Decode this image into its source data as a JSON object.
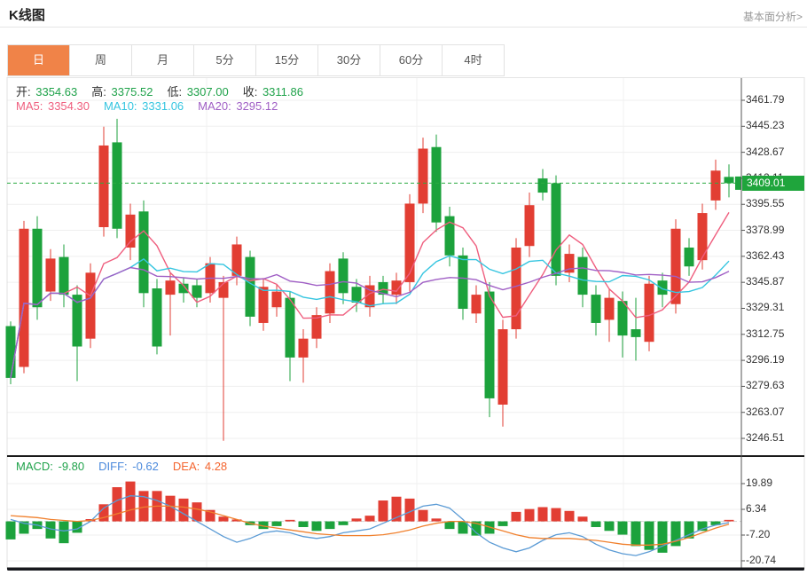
{
  "header": {
    "title": "K线图",
    "link": "基本面分析>"
  },
  "tabs": [
    {
      "label": "日",
      "selected": true
    },
    {
      "label": "周",
      "selected": false
    },
    {
      "label": "月",
      "selected": false
    },
    {
      "label": "5分",
      "selected": false
    },
    {
      "label": "15分",
      "selected": false
    },
    {
      "label": "30分",
      "selected": false
    },
    {
      "label": "60分",
      "selected": false
    },
    {
      "label": "4时",
      "selected": false
    }
  ],
  "legend": {
    "ohlc": [
      {
        "label": "开:",
        "value": "3354.63"
      },
      {
        "label": "高:",
        "value": "3375.52"
      },
      {
        "label": "低:",
        "value": "3307.00"
      },
      {
        "label": "收:",
        "value": "3311.86"
      }
    ],
    "ma": [
      {
        "label": "MA5:",
        "value": "3354.30",
        "color": "#ef5e7e"
      },
      {
        "label": "MA10:",
        "value": "3331.06",
        "color": "#35c5e0"
      },
      {
        "label": "MA20:",
        "value": "3295.12",
        "color": "#a05fc5"
      }
    ]
  },
  "macd_legend": [
    {
      "label": "MACD:",
      "value": "-9.80",
      "color": "#1fa24a"
    },
    {
      "label": "DIFF:",
      "value": "-0.62",
      "color": "#4a89dc"
    },
    {
      "label": "DEA:",
      "value": "4.28",
      "color": "#f4652f"
    }
  ],
  "current_price": {
    "value": "3409.01",
    "price": 3409.01
  },
  "colors": {
    "up": "#e23e33",
    "down": "#1ca23c",
    "ohlc_value": "#1fa24a",
    "badge_bg": "#1fa53c",
    "dashed_line": "#2bab40",
    "diff_line": "#5b9bd5",
    "dea_line": "#f0802d",
    "grid": "#efefef",
    "axis": "#555555",
    "tab_accent": "#f08348"
  },
  "chart_data": [
    {
      "type": "candlestick",
      "title": "K线图 daily candles (open, close, high, low)",
      "price_ticks": [
        "3461.79",
        "3445.23",
        "3428.67",
        "3412.11",
        "3395.55",
        "3378.99",
        "3362.43",
        "3345.87",
        "3329.31",
        "3312.75",
        "3296.19",
        "3279.63",
        "3263.07",
        "3246.51"
      ],
      "ylim": [
        3246.51,
        3461.79
      ],
      "current_price": 3409.01,
      "up_color": "#e23e33",
      "down_color": "#1ca23c",
      "ma_lines": [
        {
          "period": 5,
          "color": "#ef5e7e"
        },
        {
          "period": 10,
          "color": "#35c5e0"
        },
        {
          "period": 20,
          "color": "#a05fc5"
        }
      ],
      "candles": [
        [
          3318,
          3285,
          3321,
          3281
        ],
        [
          3292,
          3380,
          3385,
          3288
        ],
        [
          3380,
          3330,
          3388,
          3322
        ],
        [
          3340,
          3361,
          3367,
          3334
        ],
        [
          3362,
          3338,
          3370,
          3330
        ],
        [
          3338,
          3305,
          3344,
          3283
        ],
        [
          3310,
          3352,
          3358,
          3304
        ],
        [
          3381,
          3433,
          3445,
          3375
        ],
        [
          3435,
          3380,
          3450,
          3374
        ],
        [
          3368,
          3389,
          3396,
          3360
        ],
        [
          3391,
          3339,
          3398,
          3330
        ],
        [
          3342,
          3305,
          3348,
          3300
        ],
        [
          3338,
          3347,
          3352,
          3312
        ],
        [
          3345,
          3339,
          3349,
          3333
        ],
        [
          3344,
          3336,
          3348,
          3330
        ],
        [
          3339,
          3358,
          3362,
          3333
        ],
        [
          3336,
          3346,
          3350,
          3245
        ],
        [
          3350,
          3370,
          3375,
          3344
        ],
        [
          3362,
          3324,
          3366,
          3318
        ],
        [
          3320,
          3343,
          3348,
          3315
        ],
        [
          3330,
          3340,
          3345,
          3324
        ],
        [
          3336,
          3298,
          3340,
          3283
        ],
        [
          3298,
          3310,
          3316,
          3282
        ],
        [
          3310,
          3325,
          3330,
          3304
        ],
        [
          3326,
          3353,
          3358,
          3320
        ],
        [
          3361,
          3339,
          3365,
          3332
        ],
        [
          3343,
          3333,
          3348,
          3327
        ],
        [
          3330,
          3344,
          3350,
          3324
        ],
        [
          3346,
          3338,
          3350,
          3332
        ],
        [
          3338,
          3347,
          3352,
          3332
        ],
        [
          3346,
          3396,
          3402,
          3340
        ],
        [
          3396,
          3431,
          3438,
          3390
        ],
        [
          3432,
          3384,
          3440,
          3378
        ],
        [
          3388,
          3363,
          3394,
          3356
        ],
        [
          3363,
          3329,
          3368,
          3322
        ],
        [
          3326,
          3338,
          3344,
          3320
        ],
        [
          3340,
          3272,
          3346,
          3260
        ],
        [
          3268,
          3316,
          3322,
          3254
        ],
        [
          3316,
          3368,
          3374,
          3310
        ],
        [
          3369,
          3395,
          3403,
          3362
        ],
        [
          3412,
          3403,
          3418,
          3398
        ],
        [
          3409,
          3350,
          3414,
          3344
        ],
        [
          3352,
          3364,
          3370,
          3346
        ],
        [
          3362,
          3338,
          3368,
          3330
        ],
        [
          3338,
          3320,
          3344,
          3312
        ],
        [
          3322,
          3336,
          3342,
          3308
        ],
        [
          3334,
          3312,
          3340,
          3298
        ],
        [
          3316,
          3311,
          3336,
          3296
        ],
        [
          3308,
          3345,
          3350,
          3302
        ],
        [
          3347,
          3338,
          3352,
          3330
        ],
        [
          3332,
          3380,
          3386,
          3326
        ],
        [
          3368,
          3356,
          3374,
          3350
        ],
        [
          3360,
          3390,
          3396,
          3354
        ],
        [
          3398,
          3417,
          3424,
          3392
        ],
        [
          3413,
          3409,
          3421,
          3400
        ]
      ]
    },
    {
      "type": "bar",
      "name": "MACD",
      "ticks": [
        "19.89",
        "6.34",
        "-7.20",
        "-20.74"
      ],
      "ylim": [
        -20.74,
        19.89
      ],
      "bar_up_color": "#e23e33",
      "bar_down_color": "#1ca23c",
      "diff_color": "#5b9bd5",
      "dea_color": "#f0802d",
      "values": [
        -9.5,
        -6.5,
        -4,
        -9,
        -11.5,
        -6,
        1.2,
        9,
        18,
        21,
        16,
        16,
        13.5,
        12,
        10,
        6,
        2.5,
        1,
        -2,
        -4,
        -2.5,
        0.8,
        -3,
        -5,
        -4,
        -2,
        1.5,
        3,
        11,
        13,
        12,
        6,
        1.5,
        -4,
        -6.5,
        -7.5,
        -6.5,
        -2.5,
        5,
        6.5,
        7.5,
        7,
        5.5,
        2.5,
        -3,
        -5,
        -7,
        -13,
        -15,
        -16.5,
        -13,
        -9,
        -5,
        -2,
        0.8
      ],
      "diff": [
        1,
        -1,
        -2,
        -4,
        -5,
        -4,
        0,
        7,
        11,
        13.5,
        13,
        11,
        8,
        4,
        0,
        -4,
        -8,
        -11,
        -9,
        -6,
        -5,
        -6,
        -8,
        -9,
        -8,
        -6,
        -5,
        -4,
        -1,
        2,
        5,
        8,
        9,
        7,
        1,
        -6,
        -11,
        -14,
        -16,
        -14,
        -10,
        -7,
        -6,
        -8,
        -12,
        -15,
        -17,
        -18,
        -16,
        -13,
        -10,
        -7,
        -4,
        -2,
        -0.6
      ],
      "dea": [
        3,
        2.5,
        2,
        1,
        0.5,
        0,
        0.5,
        2,
        4,
        6,
        7.5,
        8,
        8,
        7.5,
        6.5,
        5,
        3,
        1,
        -1,
        -2.5,
        -3.5,
        -4.5,
        -5.5,
        -6.5,
        -7,
        -7.5,
        -7.5,
        -7.5,
        -7,
        -6,
        -4.5,
        -2.5,
        -1,
        0,
        0,
        -1,
        -3,
        -5,
        -7,
        -8.5,
        -9,
        -9,
        -9,
        -9.5,
        -10,
        -11,
        -12,
        -12.5,
        -12.5,
        -12,
        -10.5,
        -8.5,
        -6,
        -3.5,
        -1.5
      ]
    }
  ]
}
